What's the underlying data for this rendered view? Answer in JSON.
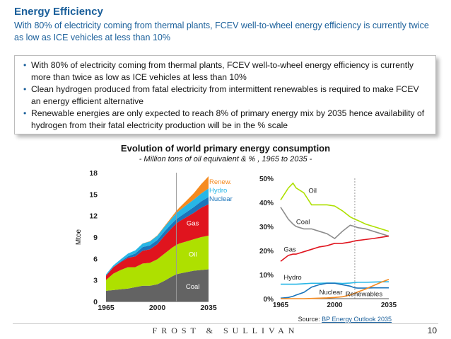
{
  "slide": {
    "title": "Energy Efficiency",
    "subtitle": "With 80% of electricity coming from thermal plants, FCEV well-to-wheel energy efficiency is currently twice as low as ICE vehicles at less than 10%",
    "bullets": [
      "With 80% of electricity coming from thermal plants, FCEV well-to-wheel energy efficiency is currently more than twice as low as ICE vehicles at less than 10%",
      "Clean hydrogen produced from fatal electricity from intermittent renewables is required to make FCEV an energy efficient alternative",
      "Renewable energies are only expected to reach 8% of primary energy mix by 2035 hence availability of hydrogen from their fatal electricity production will be in the % scale"
    ],
    "chart_title": "Evolution of world primary energy consumption",
    "chart_subtitle": "- Million tons of oil equivalent & % , 1965 to 2035 -",
    "source_label": "Source: ",
    "source_link": "BP Energy Outlook 2035",
    "brand": "FROST & SULLIVAN",
    "page_number": "10"
  },
  "chart_data": [
    {
      "type": "area",
      "title": "",
      "xlabel": "",
      "ylabel": "Mtoe",
      "xlim": [
        1965,
        2035
      ],
      "ylim": [
        0,
        18
      ],
      "xticks": [
        1965,
        2000,
        2035
      ],
      "yticks": [
        0,
        3,
        6,
        9,
        12,
        15,
        18
      ],
      "projection_start": 2013,
      "x": [
        1965,
        1970,
        1975,
        1980,
        1985,
        1990,
        1995,
        2000,
        2005,
        2010,
        2013,
        2015,
        2020,
        2025,
        2030,
        2035
      ],
      "series": [
        {
          "name": "Coal",
          "label": "Coal",
          "color": "#636363",
          "values": [
            1.5,
            1.6,
            1.7,
            1.8,
            2.0,
            2.2,
            2.2,
            2.4,
            2.9,
            3.5,
            3.8,
            3.9,
            4.1,
            4.3,
            4.4,
            4.5
          ]
        },
        {
          "name": "Oil",
          "label": "Oil",
          "color": "#aee000",
          "values": [
            1.5,
            2.3,
            2.7,
            3.0,
            2.8,
            3.1,
            3.2,
            3.5,
            3.8,
            4.0,
            4.1,
            4.2,
            4.3,
            4.4,
            4.6,
            4.7
          ]
        },
        {
          "name": "Gas",
          "label": "Gas",
          "color": "#e0141e",
          "values": [
            0.6,
            0.9,
            1.1,
            1.3,
            1.5,
            1.8,
            1.9,
            2.1,
            2.5,
            2.8,
            3.0,
            3.1,
            3.4,
            3.7,
            4.1,
            4.4
          ]
        },
        {
          "name": "Nuclear",
          "label": "Nuclear",
          "color": "#1b75bb",
          "values": [
            0.0,
            0.0,
            0.1,
            0.2,
            0.4,
            0.5,
            0.55,
            0.58,
            0.6,
            0.6,
            0.6,
            0.6,
            0.7,
            0.8,
            0.9,
            1.0
          ]
        },
        {
          "name": "Hydro",
          "label": "Hydro",
          "color": "#27b6e6",
          "values": [
            0.2,
            0.25,
            0.3,
            0.4,
            0.45,
            0.5,
            0.55,
            0.6,
            0.65,
            0.75,
            0.85,
            0.9,
            1.0,
            1.05,
            1.1,
            1.2
          ]
        },
        {
          "name": "Renew.",
          "label": "Renew.",
          "color": "#f58a1f",
          "values": [
            0.0,
            0.0,
            0.0,
            0.0,
            0.0,
            0.01,
            0.03,
            0.05,
            0.1,
            0.2,
            0.3,
            0.4,
            0.6,
            0.9,
            1.3,
            1.7
          ]
        }
      ]
    },
    {
      "type": "line",
      "title": "",
      "xlabel": "",
      "ylabel": "",
      "xlim": [
        1965,
        2035
      ],
      "ylim": [
        0,
        50
      ],
      "xticks": [
        1965,
        2000,
        2035
      ],
      "ytick_labels": [
        "0%",
        "10%",
        "20%",
        "30%",
        "40%",
        "50%"
      ],
      "yticks": [
        0,
        10,
        20,
        30,
        40,
        50
      ],
      "projection_start": 2013,
      "x": [
        1965,
        1970,
        1973,
        1975,
        1980,
        1985,
        1990,
        1995,
        2000,
        2005,
        2010,
        2013,
        2015,
        2020,
        2025,
        2030,
        2035
      ],
      "series": [
        {
          "name": "Oil",
          "label": "Oil",
          "color": "#aee000",
          "values": [
            41,
            46,
            48,
            46,
            44,
            39,
            39,
            39,
            38.5,
            36.5,
            34,
            33,
            32.5,
            31,
            30,
            29,
            28
          ]
        },
        {
          "name": "Coal",
          "label": "Coal",
          "color": "#8c8c8c",
          "values": [
            38,
            33,
            31,
            30,
            29,
            29,
            28,
            27,
            25,
            28,
            30.5,
            30,
            29.5,
            29,
            28,
            27,
            26
          ]
        },
        {
          "name": "Gas",
          "label": "Gas",
          "color": "#e0141e",
          "values": [
            15.5,
            18,
            18.5,
            18.5,
            19.5,
            20.5,
            21.5,
            22,
            23,
            23,
            23.5,
            24,
            24.2,
            24.6,
            25,
            25.5,
            26
          ]
        },
        {
          "name": "Hydro",
          "label": "Hydro",
          "color": "#27b6e6",
          "values": [
            6,
            6,
            6,
            6,
            6.2,
            6.4,
            6.4,
            6.5,
            6.5,
            6.3,
            6.5,
            6.7,
            6.8,
            6.8,
            6.9,
            7,
            7
          ]
        },
        {
          "name": "Nuclear",
          "label": "Nuclear",
          "color": "#1b75bb",
          "values": [
            0.2,
            0.5,
            1,
            1.5,
            2.6,
            4.8,
            5.8,
            6.4,
            6.4,
            5.8,
            5.2,
            4.5,
            4.4,
            4.4,
            4.5,
            4.5,
            4.5
          ]
        },
        {
          "name": "Renewables",
          "label": "Renewables",
          "color": "#f58a1f",
          "values": [
            0,
            0,
            0,
            0,
            0,
            0.1,
            0.2,
            0.3,
            0.5,
            0.8,
            1.5,
            2.2,
            2.8,
            4,
            5.4,
            6.8,
            8
          ]
        }
      ]
    }
  ]
}
